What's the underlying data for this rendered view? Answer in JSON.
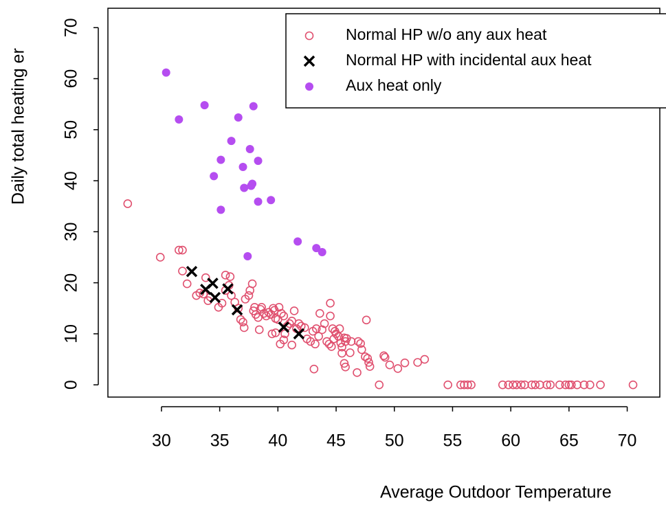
{
  "chart_data": {
    "type": "scatter",
    "x_label": "Average Outdoor Temperature",
    "y_label": "Daily total heating er",
    "xlim": [
      25.4,
      72.8
    ],
    "ylim": [
      -2.4,
      73.8
    ],
    "xticks": [
      30,
      35,
      40,
      45,
      50,
      55,
      60,
      65,
      70
    ],
    "yticks": [
      0,
      10,
      20,
      30,
      40,
      50,
      60,
      70
    ],
    "legend_position": "topright",
    "series": [
      {
        "name": "Normal HP w/o any aux heat",
        "color": "#e0506f",
        "marker": "circle",
        "x": [
          27.1,
          29.9,
          31.5,
          31.8,
          31.8,
          32.2,
          33.8,
          33.0,
          33.3,
          33.6,
          34.0,
          34.2,
          34.9,
          35.2,
          35.5,
          35.8,
          35.5,
          35.9,
          36.0,
          36.3,
          36.6,
          36.8,
          37.0,
          37.2,
          37.5,
          37.6,
          37.8,
          37.9,
          38.0,
          38.1,
          38.3,
          38.5,
          38.6,
          38.8,
          39.0,
          39.2,
          39.4,
          39.6,
          39.7,
          39.8,
          40.0,
          40.1,
          40.3,
          40.5,
          40.6,
          40.8,
          39.5,
          39.8,
          40.2,
          40.5,
          41.0,
          41.2,
          41.4,
          41.6,
          41.8,
          42.0,
          42.3,
          42.5,
          42.8,
          43.0,
          43.3,
          43.5,
          43.6,
          43.8,
          44.0,
          44.2,
          44.4,
          44.6,
          44.8,
          45.0,
          45.2,
          44.5,
          44.7,
          44.9,
          45.3,
          38.4,
          37.1,
          41.2,
          43.2,
          45.4,
          45.7,
          43.1,
          44.5,
          45.8,
          45.9,
          46.3,
          45.5,
          45.5,
          45.7,
          45.8,
          46.2,
          46.9,
          47.1,
          47.2,
          47.6,
          46.8,
          47.5,
          47.7,
          47.8,
          47.9,
          49.1,
          49.2,
          49.6,
          48.7,
          50.3,
          50.9,
          52.0,
          52.6,
          54.6,
          55.7,
          56.0,
          56.3,
          56.6,
          59.3,
          59.8,
          60.2,
          60.5,
          60.9,
          61.2,
          61.8,
          62.1,
          62.5,
          63.1,
          63.4,
          64.2,
          64.7,
          65.0,
          65.2,
          65.7,
          66.3,
          66.8,
          67.7,
          70.5
        ],
        "y": [
          35.5,
          25.0,
          26.4,
          26.4,
          22.3,
          19.8,
          21.0,
          17.5,
          18.0,
          17.8,
          16.5,
          17.2,
          15.2,
          16.0,
          18.5,
          19.5,
          21.5,
          21.2,
          17.5,
          16.2,
          15.0,
          12.8,
          12.3,
          16.8,
          17.5,
          18.5,
          19.8,
          14.5,
          15.2,
          13.8,
          13.2,
          14.8,
          15.2,
          14.0,
          13.5,
          14.2,
          13.8,
          15.0,
          14.6,
          13.0,
          12.8,
          15.2,
          14.0,
          13.5,
          10.0,
          11.5,
          10.0,
          10.2,
          8.0,
          8.8,
          12.0,
          12.5,
          14.5,
          11.0,
          12.0,
          11.5,
          11.2,
          9.0,
          8.5,
          10.5,
          11.0,
          9.5,
          14.0,
          10.8,
          12.0,
          8.5,
          8.0,
          7.5,
          9.0,
          10.0,
          9.5,
          13.5,
          11.0,
          10.5,
          11.0,
          10.8,
          11.2,
          7.8,
          8.0,
          8.2,
          9.2,
          3.1,
          16.0,
          8.5,
          9.1,
          8.5,
          7.4,
          6.2,
          4.2,
          3.5,
          6.3,
          8.5,
          8.1,
          6.9,
          12.7,
          2.4,
          5.5,
          5.2,
          4.4,
          3.6,
          5.7,
          5.4,
          3.9,
          0,
          3.2,
          4.3,
          4.4,
          5.0,
          0,
          0,
          0,
          0,
          0,
          0,
          0,
          0,
          0,
          0,
          0,
          0,
          0,
          0,
          0,
          0,
          0,
          0,
          0,
          0,
          0,
          0,
          0,
          0,
          0
        ]
      },
      {
        "name": "Normal HP with incidental aux heat",
        "color": "#000000",
        "marker": "x",
        "x": [
          32.6,
          33.8,
          34.4,
          34.6,
          35.7,
          36.5,
          40.5,
          41.8
        ],
        "y": [
          22.2,
          18.7,
          19.9,
          17.1,
          18.8,
          14.7,
          11.3,
          10.0
        ]
      },
      {
        "name": "Aux heat only",
        "color": "#b54df0",
        "marker": "dot",
        "x": [
          30.4,
          31.5,
          33.7,
          34.5,
          35.1,
          35.1,
          36.0,
          36.6,
          37.0,
          37.1,
          37.6,
          37.7,
          37.9,
          37.8,
          38.3,
          38.3,
          39.4,
          37.4,
          41.7,
          43.3,
          43.8
        ],
        "y": [
          61.2,
          52.0,
          54.8,
          40.9,
          44.1,
          34.3,
          47.8,
          52.4,
          42.7,
          38.6,
          46.2,
          39.0,
          54.6,
          39.4,
          43.9,
          35.9,
          36.2,
          25.2,
          28.1,
          26.8,
          26.0
        ]
      }
    ]
  }
}
